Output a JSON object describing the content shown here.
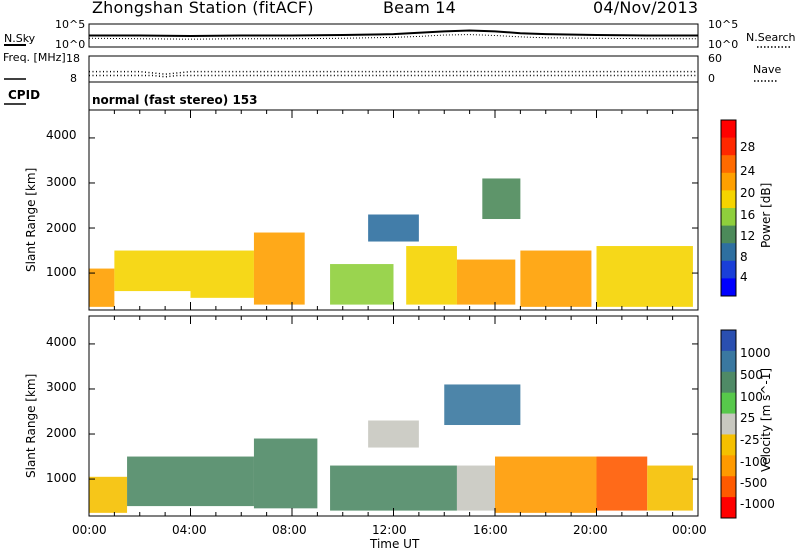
{
  "header": {
    "station": "Zhongshan Station (fitACF)",
    "beam": "Beam 14",
    "date": "04/Nov/2013"
  },
  "chart_data": [
    {
      "type": "line",
      "panel": "noise",
      "left_label": "N.Sky",
      "right_label": "N.Search",
      "left_ticks": [
        "10^5",
        "10^0"
      ],
      "right_ticks": [
        "10^5",
        "10^0"
      ],
      "x": [
        0,
        2,
        4,
        6,
        8,
        10,
        12,
        13,
        14,
        15,
        16,
        17,
        18,
        20,
        22,
        24
      ],
      "series": [
        {
          "values": [
            2.5,
            2.5,
            2.4,
            2.5,
            2.5,
            2.6,
            2.8,
            3.1,
            3.4,
            3.6,
            3.4,
            3.0,
            2.8,
            2.6,
            2.5,
            2.5
          ]
        },
        {
          "values": [
            1.9,
            1.8,
            1.7,
            1.8,
            1.8,
            1.9,
            2.1,
            2.3,
            2.6,
            2.7,
            2.5,
            2.2,
            2.0,
            1.9,
            1.8,
            1.8
          ]
        }
      ]
    },
    {
      "type": "line",
      "panel": "frequency",
      "left_label": "Freq. [MHz]",
      "left_ticks": [
        "18",
        "8"
      ],
      "right_label": "Nave",
      "right_ticks": [
        "60",
        "0"
      ],
      "ylim": [
        8,
        18
      ],
      "x": [
        0,
        2,
        2.5,
        3,
        3.5,
        4,
        6,
        12,
        18,
        24
      ],
      "series": [
        {
          "values": [
            12,
            12,
            11.5,
            11,
            11.5,
            12,
            12,
            12,
            12,
            12
          ]
        },
        {
          "values": [
            10.5,
            10.5,
            10.5,
            10,
            10.5,
            10.5,
            10.5,
            10.5,
            10.5,
            10.5
          ]
        }
      ]
    },
    {
      "type": "heatmap",
      "panel": "power",
      "cpid_label": "CPID",
      "cpid_text": "normal (fast stereo) 153",
      "ylabel": "Slant Range [km]",
      "y_ticks": [
        "4000",
        "3000",
        "2000",
        "1000"
      ],
      "ylim": [
        180,
        4620
      ],
      "xlim": [
        0,
        24
      ],
      "colorbar_label": "Power [dB]",
      "colorbar_ticks": [
        "28",
        "24",
        "20",
        "16",
        "12",
        "8",
        "4"
      ],
      "colorbar_colors": [
        "#ff0000",
        "#ff2800",
        "#ff6a00",
        "#ffa000",
        "#f5d400",
        "#8fcf3c",
        "#4c8a5a",
        "#2e6fa0",
        "#1a3fd8",
        "#0000ff"
      ],
      "regions": [
        {
          "x0": 0.0,
          "x1": 1.0,
          "y0": 250,
          "y1": 1100,
          "level": 0.7
        },
        {
          "x0": 1.0,
          "x1": 4.0,
          "y0": 600,
          "y1": 1500,
          "level": 0.55
        },
        {
          "x0": 4.0,
          "x1": 6.5,
          "y0": 450,
          "y1": 1500,
          "level": 0.6
        },
        {
          "x0": 6.5,
          "x1": 8.5,
          "y0": 300,
          "y1": 1900,
          "level": 0.65
        },
        {
          "x0": 9.5,
          "x1": 12.0,
          "y0": 300,
          "y1": 1200,
          "level": 0.45
        },
        {
          "x0": 11.0,
          "x1": 13.0,
          "y0": 1700,
          "y1": 2300,
          "level": 0.2
        },
        {
          "x0": 12.5,
          "x1": 14.5,
          "y0": 300,
          "y1": 1600,
          "level": 0.55
        },
        {
          "x0": 14.5,
          "x1": 16.8,
          "y0": 300,
          "y1": 1300,
          "level": 0.7
        },
        {
          "x0": 15.5,
          "x1": 17.0,
          "y0": 2200,
          "y1": 3100,
          "level": 0.3
        },
        {
          "x0": 17.0,
          "x1": 19.8,
          "y0": 250,
          "y1": 1500,
          "level": 0.65
        },
        {
          "x0": 20.0,
          "x1": 23.8,
          "y0": 250,
          "y1": 1600,
          "level": 0.6
        }
      ]
    },
    {
      "type": "heatmap",
      "panel": "velocity",
      "ylabel": "Slant Range [km]",
      "y_ticks": [
        "4000",
        "3000",
        "2000",
        "1000"
      ],
      "ylim": [
        180,
        4620
      ],
      "xlim": [
        0,
        24
      ],
      "x_ticks": [
        "00:00",
        "04:00",
        "08:00",
        "12:00",
        "16:00",
        "20:00",
        "00:00"
      ],
      "xlabel": "Time UT",
      "colorbar_label": "Velocity [m s^-1]",
      "colorbar_ticks": [
        "1000",
        "500",
        "100",
        "25",
        "-25",
        "-100",
        "-500",
        "-1000"
      ],
      "colorbar_colors": [
        "#2a4fb0",
        "#3a78a0",
        "#4f8a66",
        "#57c84b",
        "#c8c8c0",
        "#f5c000",
        "#ff9a00",
        "#ff5a00",
        "#ff0000"
      ],
      "regions": [
        {
          "x0": 0.0,
          "x1": 1.5,
          "y0": 250,
          "y1": 1050,
          "level": 0.35
        },
        {
          "x0": 1.5,
          "x1": 6.5,
          "y0": 400,
          "y1": 1500,
          "level": 0.72
        },
        {
          "x0": 6.5,
          "x1": 9.0,
          "y0": 350,
          "y1": 1900,
          "level": 0.72
        },
        {
          "x0": 9.5,
          "x1": 14.5,
          "y0": 300,
          "y1": 1300,
          "level": 0.8
        },
        {
          "x0": 11.0,
          "x1": 13.0,
          "y0": 1700,
          "y1": 2300,
          "level": 0.55
        },
        {
          "x0": 14.5,
          "x1": 16.0,
          "y0": 300,
          "y1": 1300,
          "level": 0.45
        },
        {
          "x0": 14.0,
          "x1": 17.0,
          "y0": 2200,
          "y1": 3100,
          "level": 0.85
        },
        {
          "x0": 16.0,
          "x1": 20.0,
          "y0": 250,
          "y1": 1500,
          "level": 0.28
        },
        {
          "x0": 20.0,
          "x1": 22.0,
          "y0": 300,
          "y1": 1500,
          "level": 0.1
        },
        {
          "x0": 22.0,
          "x1": 23.8,
          "y0": 300,
          "y1": 1300,
          "level": 0.35
        }
      ]
    }
  ]
}
